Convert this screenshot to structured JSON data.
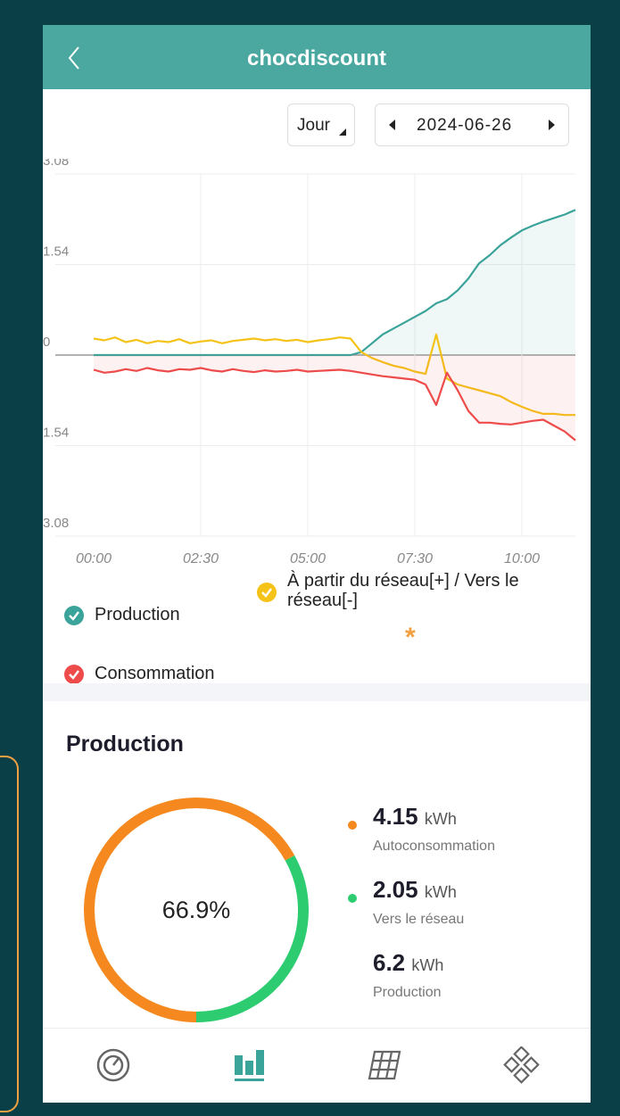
{
  "header": {
    "title": "chocdiscount"
  },
  "controls": {
    "period": "Jour",
    "date": "2024-06-26"
  },
  "chart_data": [
    {
      "type": "line",
      "x": [
        0,
        0.25,
        0.5,
        0.75,
        1,
        1.25,
        1.5,
        1.75,
        2,
        2.25,
        2.5,
        2.75,
        3,
        3.25,
        3.5,
        3.75,
        4,
        4.25,
        4.5,
        4.75,
        5,
        5.25,
        5.5,
        5.75,
        6,
        6.25,
        6.5,
        6.75,
        7,
        7.25,
        7.5,
        7.75,
        8,
        8.25,
        8.5,
        8.75,
        9,
        9.25,
        9.5,
        9.75,
        10,
        10.25,
        10.5,
        10.75,
        11,
        11.25
      ],
      "xlim": [
        0,
        11.25
      ],
      "xticks": [
        {
          "value": 0,
          "label": "00:00"
        },
        {
          "value": 2.5,
          "label": "02:30"
        },
        {
          "value": 5,
          "label": "05:00"
        },
        {
          "value": 7.5,
          "label": "07:30"
        },
        {
          "value": 10,
          "label": "10:00"
        }
      ],
      "ylim": [
        -3.08,
        3.08
      ],
      "yticks": [
        3.08,
        1.54,
        0,
        {
          "value": -1.54,
          "label": "1.54"
        },
        {
          "value": -3.08,
          "label": "3.08"
        }
      ],
      "grid": true,
      "series": [
        {
          "name": "Production",
          "color": "#3aa39a",
          "values": [
            0,
            0,
            0,
            0,
            0,
            0,
            0,
            0,
            0,
            0,
            0,
            0,
            0,
            0,
            0,
            0,
            0,
            0,
            0,
            0,
            0,
            0,
            0,
            0,
            0,
            0.05,
            0.2,
            0.35,
            0.45,
            0.55,
            0.65,
            0.75,
            0.88,
            0.95,
            1.1,
            1.3,
            1.56,
            1.7,
            1.87,
            2.0,
            2.12,
            2.2,
            2.27,
            2.33,
            2.39,
            2.47
          ]
        },
        {
          "name": "À partir du réseau[+] / Vers le réseau[-]",
          "color": "#f5c318",
          "values": [
            0.28,
            0.25,
            0.3,
            0.22,
            0.26,
            0.2,
            0.24,
            0.22,
            0.27,
            0.2,
            0.23,
            0.25,
            0.2,
            0.24,
            0.26,
            0.28,
            0.25,
            0.27,
            0.24,
            0.26,
            0.22,
            0.25,
            0.27,
            0.3,
            0.28,
            0.05,
            -0.05,
            -0.12,
            -0.18,
            -0.22,
            -0.28,
            -0.32,
            0.35,
            -0.4,
            -0.5,
            -0.55,
            -0.6,
            -0.65,
            -0.7,
            -0.8,
            -0.88,
            -0.95,
            -1.0,
            -1.0,
            -1.02,
            -1.02
          ]
        },
        {
          "name": "Consommation",
          "color": "#ee4b4b",
          "values": [
            -0.25,
            -0.3,
            -0.28,
            -0.24,
            -0.27,
            -0.22,
            -0.26,
            -0.28,
            -0.24,
            -0.25,
            -0.22,
            -0.26,
            -0.28,
            -0.24,
            -0.27,
            -0.29,
            -0.26,
            -0.28,
            -0.27,
            -0.25,
            -0.28,
            -0.27,
            -0.26,
            -0.25,
            -0.27,
            -0.3,
            -0.33,
            -0.36,
            -0.38,
            -0.4,
            -0.42,
            -0.5,
            -0.85,
            -0.3,
            -0.6,
            -0.95,
            -1.15,
            -1.15,
            -1.17,
            -1.18,
            -1.15,
            -1.12,
            -1.1,
            -1.2,
            -1.3,
            -1.45
          ]
        }
      ],
      "note_marker": "*"
    },
    {
      "type": "donut",
      "title": "Production",
      "categories": [
        "Autoconsommation",
        "Vers le réseau"
      ],
      "values": [
        4.15,
        2.05
      ],
      "colors": [
        "#f5891f",
        "#2ecc71"
      ],
      "unit": "kWh",
      "center_label": "66.9%",
      "total": 6.2,
      "total_label": "Production"
    }
  ]
}
